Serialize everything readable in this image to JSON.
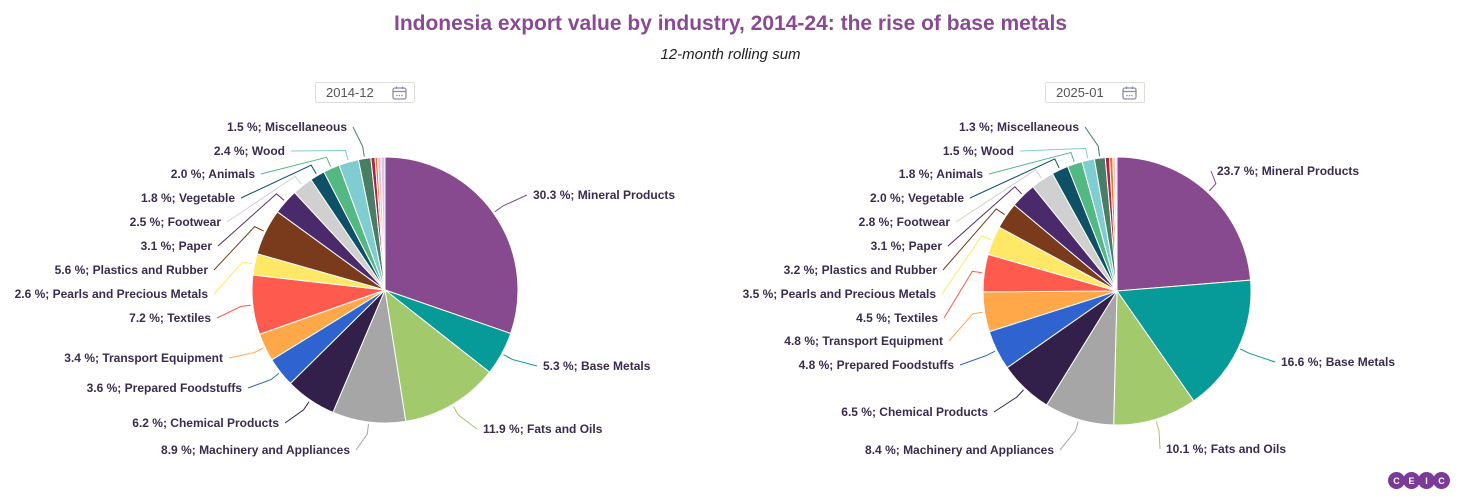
{
  "title": "Indonesia export value by industry, 2014-24: the rise of base metals",
  "subtitle": "12-month rolling sum",
  "logo": "CEIC",
  "colors": [
    "#874a8f",
    "#069a98",
    "#a2c96b",
    "#a6a6a6",
    "#33204a",
    "#2f64d0",
    "#ffa84a",
    "#ff5a4e",
    "#ffe866",
    "#7a3a1c",
    "#4a2a6a",
    "#d0d0d0",
    "#0e5066",
    "#54b882",
    "#7fcdd0",
    "#477e64",
    "#b3204a",
    "#e07a1e",
    "#f2b8c8",
    "#d8c8e8"
  ],
  "chart_data": [
    {
      "type": "pie",
      "date": "2014-12",
      "slices": [
        {
          "name": "Mineral Products",
          "value": 30.3,
          "label": "30.3 %; Mineral Products"
        },
        {
          "name": "Base Metals",
          "value": 5.3,
          "label": "5.3 %; Base Metals"
        },
        {
          "name": "Fats and Oils",
          "value": 11.9,
          "label": "11.9 %; Fats and Oils"
        },
        {
          "name": "Machinery and Appliances",
          "value": 8.9,
          "label": "8.9 %; Machinery and Appliances"
        },
        {
          "name": "Chemical Products",
          "value": 6.2,
          "label": "6.2 %; Chemical Products"
        },
        {
          "name": "Prepared Foodstuffs",
          "value": 3.6,
          "label": "3.6 %; Prepared Foodstuffs"
        },
        {
          "name": "Transport Equipment",
          "value": 3.4,
          "label": "3.4 %; Transport Equipment"
        },
        {
          "name": "Textiles",
          "value": 7.2,
          "label": "7.2 %; Textiles"
        },
        {
          "name": "Pearls and Precious Metals",
          "value": 2.6,
          "label": "2.6 %; Pearls and Precious Metals"
        },
        {
          "name": "Plastics and Rubber",
          "value": 5.6,
          "label": "5.6 %; Plastics and Rubber"
        },
        {
          "name": "Paper",
          "value": 3.1,
          "label": "3.1 %; Paper"
        },
        {
          "name": "Footwear",
          "value": 2.5,
          "label": "2.5 %; Footwear"
        },
        {
          "name": "Vegetable",
          "value": 1.8,
          "label": "1.8 %; Vegetable"
        },
        {
          "name": "Animals",
          "value": 2.0,
          "label": "2.0 %; Animals"
        },
        {
          "name": "Wood",
          "value": 2.4,
          "label": "2.4 %; Wood"
        },
        {
          "name": "Miscellaneous",
          "value": 1.5,
          "label": "1.5 %; Miscellaneous"
        },
        {
          "value": 0.5
        },
        {
          "value": 0.3
        },
        {
          "value": 0.4
        },
        {
          "value": 0.5
        }
      ]
    },
    {
      "type": "pie",
      "date": "2025-01",
      "slices": [
        {
          "name": "Mineral Products",
          "value": 23.7,
          "label": "23.7 %; Mineral Products"
        },
        {
          "name": "Base Metals",
          "value": 16.6,
          "label": "16.6 %; Base Metals"
        },
        {
          "name": "Fats and Oils",
          "value": 10.1,
          "label": "10.1 %; Fats and Oils"
        },
        {
          "name": "Machinery and Appliances",
          "value": 8.4,
          "label": "8.4 %; Machinery and Appliances"
        },
        {
          "name": "Chemical Products",
          "value": 6.5,
          "label": "6.5 %; Chemical Products"
        },
        {
          "name": "Prepared Foodstuffs",
          "value": 4.8,
          "label": "4.8 %; Prepared Foodstuffs"
        },
        {
          "name": "Transport Equipment",
          "value": 4.8,
          "label": "4.8 %; Transport Equipment"
        },
        {
          "name": "Textiles",
          "value": 4.5,
          "label": "4.5 %; Textiles"
        },
        {
          "name": "Pearls and Precious Metals",
          "value": 3.5,
          "label": "3.5 %; Pearls and Precious Metals"
        },
        {
          "name": "Plastics and Rubber",
          "value": 3.2,
          "label": "3.2 %; Plastics and Rubber"
        },
        {
          "name": "Paper",
          "value": 3.1,
          "label": "3.1 %; Paper"
        },
        {
          "name": "Footwear",
          "value": 2.8,
          "label": "2.8 %; Footwear"
        },
        {
          "name": "Vegetable",
          "value": 2.0,
          "label": "2.0 %; Vegetable"
        },
        {
          "name": "Animals",
          "value": 1.8,
          "label": "1.8 %; Animals"
        },
        {
          "name": "Wood",
          "value": 1.5,
          "label": "1.5 %; Wood"
        },
        {
          "name": "Miscellaneous",
          "value": 1.3,
          "label": "1.3 %; Miscellaneous"
        },
        {
          "value": 0.5
        },
        {
          "value": 0.4
        },
        {
          "value": 0.3
        },
        {
          "value": 0.2
        }
      ]
    }
  ]
}
